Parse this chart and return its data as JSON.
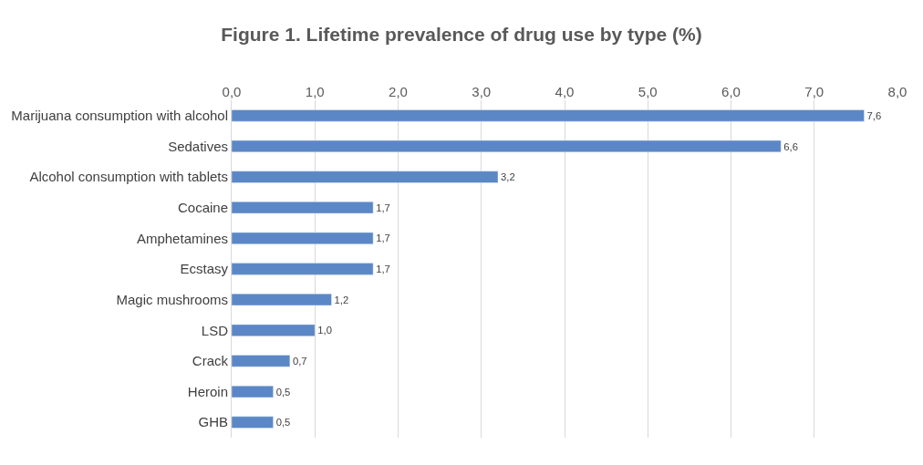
{
  "chart_data": {
    "type": "bar",
    "orientation": "horizontal",
    "title": "Figure 1. Lifetime prevalence of drug use by type (%)",
    "categories": [
      "Marijuana consumption with alcohol",
      "Sedatives",
      "Alcohol consumption with tablets",
      "Cocaine",
      "Amphetamines",
      "Ecstasy",
      "Magic mushrooms",
      "LSD",
      "Crack",
      "Heroin",
      "GHB"
    ],
    "values": [
      7.6,
      6.6,
      3.2,
      1.7,
      1.7,
      1.7,
      1.2,
      1.0,
      0.7,
      0.5,
      0.5
    ],
    "value_labels": [
      "7,6",
      "6,6",
      "3,2",
      "1,7",
      "1,7",
      "1,7",
      "1,2",
      "1,0",
      "0,7",
      "0,5",
      "0,5"
    ],
    "color": "#5b87c6",
    "xlim": [
      0,
      8
    ],
    "xticks": [
      {
        "value": 0,
        "label": "0,0"
      },
      {
        "value": 1,
        "label": "1,0"
      },
      {
        "value": 2,
        "label": "2,0"
      },
      {
        "value": 3,
        "label": "3,0"
      },
      {
        "value": 4,
        "label": "4,0"
      },
      {
        "value": 5,
        "label": "5,0"
      },
      {
        "value": 6,
        "label": "6,0"
      },
      {
        "value": 7,
        "label": "7,0"
      },
      {
        "value": 8,
        "label": "8,0"
      }
    ],
    "grid": "x"
  }
}
